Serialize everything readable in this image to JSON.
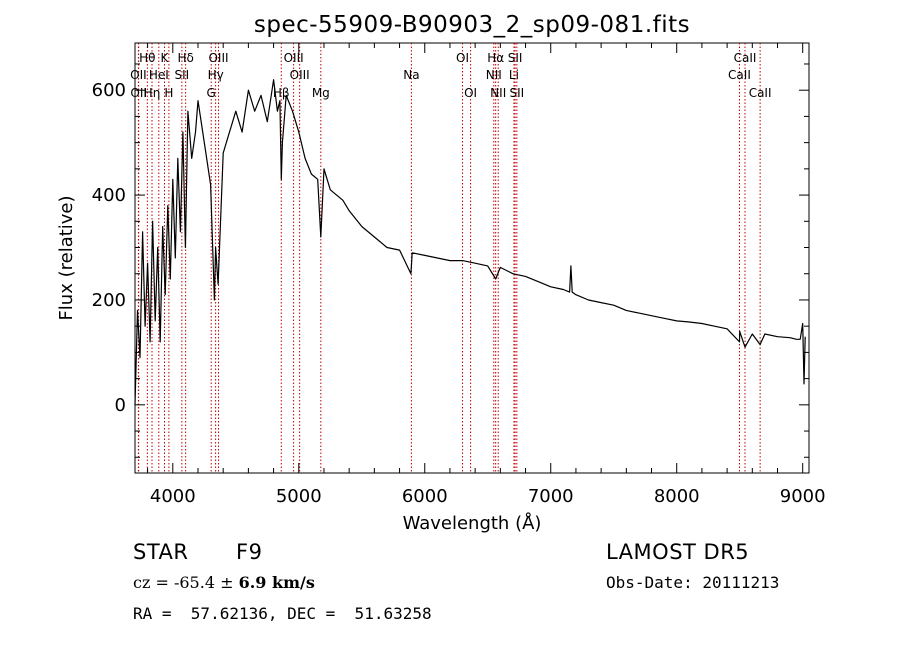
{
  "chart_data": {
    "type": "line",
    "title": "spec-55909-B90903_2_sp09-081.fits",
    "xlabel": "Wavelength (Å)",
    "ylabel": "Flux (relative)",
    "xlim": [
      3700,
      9050
    ],
    "ylim": [
      -130,
      690
    ],
    "xticks": [
      4000,
      5000,
      6000,
      7000,
      8000,
      9000
    ],
    "yticks": [
      0,
      200,
      400,
      600
    ],
    "grid": false,
    "series": [
      {
        "x": [
          3700,
          3720,
          3740,
          3760,
          3780,
          3800,
          3820,
          3840,
          3860,
          3880,
          3900,
          3920,
          3940,
          3960,
          3980,
          4000,
          4020,
          4040,
          4060,
          4080,
          4100,
          4120,
          4150,
          4180,
          4200,
          4250,
          4300,
          4330,
          4340,
          4360,
          4400,
          4450,
          4500,
          4550,
          4600,
          4650,
          4700,
          4750,
          4800,
          4830,
          4850,
          4861,
          4870,
          4900,
          4950,
          5000,
          5050,
          5100,
          5150,
          5175,
          5200,
          5250,
          5300,
          5350,
          5400,
          5500,
          5600,
          5700,
          5800,
          5890,
          5900,
          6000,
          6100,
          6200,
          6300,
          6400,
          6500,
          6563,
          6600,
          6700,
          6800,
          6900,
          7000,
          7100,
          7150,
          7160,
          7170,
          7200,
          7300,
          7400,
          7500,
          7600,
          7700,
          7800,
          7900,
          8000,
          8100,
          8200,
          8300,
          8400,
          8498,
          8500,
          8542,
          8600,
          8662,
          8700,
          8800,
          8900,
          8950,
          8980,
          9000,
          9010,
          9020
        ],
        "y": [
          0,
          180,
          90,
          330,
          150,
          270,
          120,
          350,
          160,
          300,
          120,
          340,
          210,
          380,
          240,
          430,
          280,
          470,
          330,
          520,
          300,
          560,
          470,
          520,
          580,
          500,
          420,
          200,
          300,
          230,
          480,
          520,
          560,
          520,
          600,
          560,
          590,
          540,
          620,
          560,
          580,
          430,
          500,
          590,
          560,
          520,
          470,
          440,
          430,
          320,
          450,
          410,
          400,
          390,
          370,
          340,
          320,
          300,
          295,
          250,
          290,
          285,
          280,
          275,
          275,
          270,
          265,
          240,
          262,
          250,
          245,
          235,
          225,
          220,
          215,
          265,
          215,
          210,
          200,
          195,
          190,
          180,
          175,
          170,
          165,
          160,
          158,
          155,
          150,
          145,
          120,
          140,
          110,
          135,
          115,
          135,
          130,
          128,
          125,
          125,
          155,
          40,
          130
        ]
      }
    ],
    "annotations": [
      {
        "label": "Hθ",
        "x": 3798,
        "row": 1
      },
      {
        "label": "OII",
        "x": 3727,
        "row": 2
      },
      {
        "label": "OII",
        "x": 3729,
        "row": 3
      },
      {
        "label": "Hη",
        "x": 3835,
        "row": 3
      },
      {
        "label": "K",
        "x": 3934,
        "row": 1
      },
      {
        "label": "HeI",
        "x": 3889,
        "row": 2
      },
      {
        "label": "H",
        "x": 3969,
        "row": 3
      },
      {
        "label": "Hδ",
        "x": 4102,
        "row": 1
      },
      {
        "label": "SII",
        "x": 4072,
        "row": 2
      },
      {
        "label": "OIII",
        "x": 4363,
        "row": 1
      },
      {
        "label": "Hγ",
        "x": 4340,
        "row": 2
      },
      {
        "label": "G",
        "x": 4305,
        "row": 3
      },
      {
        "label": "OIII",
        "x": 4959,
        "row": 1
      },
      {
        "label": "OIII",
        "x": 5007,
        "row": 2
      },
      {
        "label": "Hβ",
        "x": 4861,
        "row": 3
      },
      {
        "label": "Mg",
        "x": 5175,
        "row": 3
      },
      {
        "label": "Na",
        "x": 5894,
        "row": 2
      },
      {
        "label": "OI",
        "x": 6300,
        "row": 1
      },
      {
        "label": "OI",
        "x": 6364,
        "row": 3
      },
      {
        "label": "Hα",
        "x": 6563,
        "row": 1
      },
      {
        "label": "SII",
        "x": 6717,
        "row": 1
      },
      {
        "label": "NII",
        "x": 6548,
        "row": 2
      },
      {
        "label": "Li",
        "x": 6708,
        "row": 2
      },
      {
        "label": "NII",
        "x": 6583,
        "row": 3
      },
      {
        "label": "SII",
        "x": 6731,
        "row": 3
      },
      {
        "label": "CaII",
        "x": 8542,
        "row": 1
      },
      {
        "label": "CaII",
        "x": 8498,
        "row": 2
      },
      {
        "label": "CaII",
        "x": 8662,
        "row": 3
      }
    ],
    "line_color": "#000000",
    "marker_line_color": "#c00000"
  },
  "info": {
    "object_class": "STAR",
    "subclass": "F9",
    "survey": "LAMOST DR5",
    "cz_label": "cz = -65.4 ± ",
    "cz_err": "6.9 km/s",
    "obs_date": "Obs-Date: 20111213",
    "coords": "RA =  57.62136, DEC =  51.63258"
  }
}
